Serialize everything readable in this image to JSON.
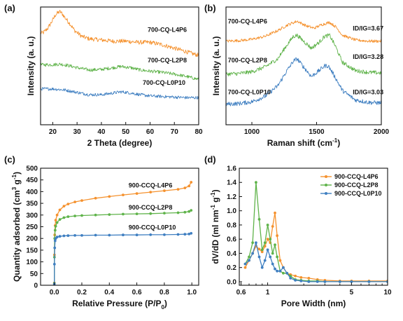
{
  "chart_data": [
    {
      "id": "a",
      "type": "line",
      "panel_label": "(a)",
      "xlabel": "2 Theta (degree)",
      "ylabel": "Intensity (a. u.)",
      "xlim": [
        15,
        80
      ],
      "ylim": [
        0,
        10
      ],
      "x_ticks": [
        20,
        30,
        40,
        50,
        60,
        70,
        80
      ],
      "y_ticks_shown": false,
      "grid": false,
      "legend": "none",
      "series": [
        {
          "name": "700-CQ-L4P6",
          "color": "#f5922f",
          "noise": 0.18,
          "x": [
            16,
            18,
            20,
            21,
            22,
            23,
            24,
            25,
            27,
            29,
            32,
            35,
            40,
            45,
            50,
            55,
            60,
            65,
            70,
            75,
            78,
            80
          ],
          "y": [
            7.8,
            8.2,
            8.9,
            9.3,
            9.5,
            9.6,
            9.4,
            9.1,
            8.6,
            8.0,
            7.5,
            7.3,
            7.2,
            7.1,
            7.1,
            7.0,
            7.0,
            6.8,
            6.5,
            6.2,
            6.0,
            5.9
          ]
        },
        {
          "name": "700-CQ-L2P8",
          "color": "#5fb34a",
          "noise": 0.14,
          "x": [
            16,
            20,
            23,
            26,
            30,
            35,
            40,
            45,
            48,
            52,
            56,
            60,
            65,
            70,
            75,
            78,
            80
          ],
          "y": [
            5.1,
            5.1,
            5.15,
            5.05,
            4.85,
            4.65,
            4.7,
            4.85,
            4.95,
            4.85,
            4.65,
            4.55,
            4.45,
            4.3,
            4.1,
            3.95,
            3.85
          ]
        },
        {
          "name": "700-CQ-L0P10",
          "color": "#3f7fc1",
          "noise": 0.13,
          "x": [
            16,
            20,
            25,
            30,
            35,
            40,
            45,
            48,
            52,
            56,
            60,
            65,
            70,
            75,
            80
          ],
          "y": [
            3.05,
            3.05,
            2.95,
            2.75,
            2.55,
            2.55,
            2.7,
            2.8,
            2.7,
            2.55,
            2.45,
            2.4,
            2.35,
            2.3,
            2.3
          ]
        }
      ],
      "annotations": [
        {
          "text": "700-CQ-L4P6",
          "x": 59,
          "y": 7.9
        },
        {
          "text": "700-CQ-L2P8",
          "x": 59,
          "y": 5.3
        },
        {
          "text": "700-CQ-L0P10",
          "x": 57,
          "y": 3.4
        }
      ]
    },
    {
      "id": "b",
      "type": "line",
      "panel_label": "(b)",
      "xlabel": "Raman shift (cm",
      "xlabel_superscript": "-1",
      "xlabel_suffix": ")",
      "ylabel": "Intensity (a. u.)",
      "xlim": [
        800,
        2000
      ],
      "ylim": [
        0,
        10
      ],
      "x_ticks": [
        1000,
        1500,
        2000
      ],
      "y_ticks_shown": false,
      "grid": false,
      "legend": "none",
      "series": [
        {
          "name": "700-CQ-L4P6",
          "color": "#f5922f",
          "noise": 0.12,
          "x": [
            800,
            900,
            1000,
            1100,
            1200,
            1280,
            1350,
            1420,
            1480,
            1540,
            1600,
            1650,
            1700,
            1800,
            1900,
            2000
          ],
          "y": [
            7.1,
            7.15,
            7.25,
            7.5,
            8.0,
            8.5,
            8.8,
            8.4,
            8.2,
            8.5,
            8.7,
            8.3,
            7.6,
            7.2,
            7.1,
            7.1
          ]
        },
        {
          "name": "700-CQ-L2P8",
          "color": "#5fb34a",
          "noise": 0.17,
          "x": [
            800,
            900,
            1000,
            1100,
            1200,
            1260,
            1320,
            1350,
            1400,
            1460,
            1520,
            1560,
            1600,
            1640,
            1700,
            1800,
            1900,
            2000
          ],
          "y": [
            4.3,
            4.35,
            4.5,
            4.9,
            5.6,
            6.6,
            7.5,
            7.6,
            7.1,
            6.5,
            7.0,
            7.5,
            7.6,
            6.8,
            5.3,
            4.6,
            4.45,
            4.4
          ]
        },
        {
          "name": "700-CQ-L0P10",
          "color": "#3f7fc1",
          "noise": 0.18,
          "x": [
            800,
            900,
            1000,
            1100,
            1200,
            1260,
            1320,
            1350,
            1400,
            1460,
            1520,
            1560,
            1590,
            1630,
            1700,
            1800,
            1900,
            2000
          ],
          "y": [
            1.75,
            1.8,
            1.95,
            2.4,
            3.3,
            4.4,
            5.4,
            5.6,
            4.9,
            4.1,
            4.6,
            5.0,
            5.0,
            4.3,
            2.9,
            2.1,
            1.9,
            1.85
          ]
        }
      ],
      "annotations": [
        {
          "text": "700-CQ-L4P6",
          "x": 815,
          "y": 8.6
        },
        {
          "text": "700-CQ-L2P8",
          "x": 815,
          "y": 5.3
        },
        {
          "text": "700-CQ-L0P10",
          "x": 815,
          "y": 2.6
        },
        {
          "text": "ID/IG=3.67",
          "x": 1780,
          "y": 8.0
        },
        {
          "text": "ID/IG=3.28",
          "x": 1780,
          "y": 5.6
        },
        {
          "text": "ID/IG=3.03",
          "x": 1780,
          "y": 2.6
        }
      ]
    },
    {
      "id": "c",
      "type": "line",
      "panel_label": "(c)",
      "xlabel": "Relative Pressure (P/P",
      "xlabel_subscript": "0",
      "xlabel_suffix": ")",
      "ylabel": "Quantity adsorbed (cm",
      "ylabel_superscript": "3",
      "ylabel_middle": " g",
      "ylabel_superscript2": "-1",
      "ylabel_suffix": ")",
      "xlim": [
        -0.1,
        1.05
      ],
      "ylim": [
        0,
        500
      ],
      "x_ticks": [
        0.0,
        0.2,
        0.4,
        0.6,
        0.8,
        1.0
      ],
      "x_tick_labels": [
        "0.0",
        "0.2",
        "0.4",
        "0.6",
        "0.8",
        "1.0"
      ],
      "y_ticks": [
        0,
        50,
        100,
        150,
        200,
        250,
        300,
        350,
        400,
        450,
        500
      ],
      "grid": false,
      "legend": "none",
      "markers": true,
      "series": [
        {
          "name": "900-CCQ-L4P6",
          "color": "#f5922f",
          "x": [
            0.0,
            0.001,
            0.003,
            0.006,
            0.01,
            0.02,
            0.04,
            0.07,
            0.1,
            0.15,
            0.2,
            0.3,
            0.4,
            0.5,
            0.6,
            0.7,
            0.8,
            0.9,
            0.95,
            0.98,
            0.995
          ],
          "y": [
            10,
            130,
            215,
            255,
            278,
            300,
            322,
            338,
            347,
            356,
            362,
            372,
            379,
            386,
            392,
            398,
            404,
            410,
            416,
            424,
            440
          ]
        },
        {
          "name": "900-CCQ-L2P8",
          "color": "#5fb34a",
          "x": [
            0.0,
            0.001,
            0.003,
            0.006,
            0.01,
            0.02,
            0.04,
            0.07,
            0.1,
            0.15,
            0.2,
            0.3,
            0.4,
            0.5,
            0.6,
            0.7,
            0.8,
            0.9,
            0.95,
            0.98,
            0.995
          ],
          "y": [
            8,
            120,
            200,
            235,
            252,
            268,
            281,
            289,
            293,
            296,
            298,
            300,
            302,
            304,
            305,
            306,
            308,
            310,
            312,
            315,
            320
          ]
        },
        {
          "name": "900-CCQ-L0P10",
          "color": "#3f7fc1",
          "x": [
            0.0,
            0.001,
            0.003,
            0.006,
            0.01,
            0.02,
            0.04,
            0.07,
            0.1,
            0.15,
            0.2,
            0.3,
            0.4,
            0.5,
            0.6,
            0.7,
            0.8,
            0.9,
            0.95,
            0.98,
            0.995
          ],
          "y": [
            5,
            90,
            160,
            190,
            200,
            206,
            209,
            211,
            212,
            213,
            213,
            214,
            214,
            215,
            215,
            216,
            216,
            217,
            218,
            219,
            222
          ]
        }
      ],
      "annotations": [
        {
          "text": "900-CCQ-L4P6",
          "x": 0.54,
          "y": 418
        },
        {
          "text": "900-CCQ-L2P8",
          "x": 0.54,
          "y": 323
        },
        {
          "text": "900-CCQ-L0P10",
          "x": 0.54,
          "y": 238
        }
      ]
    },
    {
      "id": "d",
      "type": "line",
      "panel_label": "(d)",
      "xlabel": "Pore Width (nm)",
      "ylabel": "dV/dD (ml nm",
      "ylabel_superscript": "-1",
      "ylabel_middle": " g",
      "ylabel_superscript2": "-1",
      "ylabel_suffix": ")",
      "x_scale": "log",
      "xlim": [
        0.58,
        10
      ],
      "ylim": [
        -0.05,
        1.6
      ],
      "x_ticks": [
        0.6,
        1,
        5,
        10
      ],
      "x_tick_labels": [
        "0.6",
        "1",
        "5",
        "10"
      ],
      "x_minor_ticks": [
        0.7,
        0.8,
        0.9,
        2,
        3,
        4,
        6,
        7,
        8,
        9
      ],
      "y_ticks": [
        0.0,
        0.2,
        0.4,
        0.6,
        0.8,
        1.0,
        1.2,
        1.4,
        1.6
      ],
      "y_tick_labels": [
        "0.0",
        "0.2",
        "0.4",
        "0.6",
        "0.8",
        "1.0",
        "1.2",
        "1.4",
        "1.6"
      ],
      "grid": false,
      "legend": "top-right",
      "markers": true,
      "series": [
        {
          "name": "900-CCQ-L4P6",
          "color": "#f5922f",
          "x": [
            0.65,
            0.7,
            0.75,
            0.8,
            0.85,
            0.9,
            0.95,
            1.0,
            1.05,
            1.1,
            1.15,
            1.2,
            1.27,
            1.35,
            1.45,
            1.55,
            1.7,
            1.9,
            2.2,
            2.6,
            3.0,
            4.0,
            5.0,
            7.0,
            10.0
          ],
          "y": [
            0.2,
            0.3,
            0.4,
            0.5,
            0.46,
            0.42,
            0.5,
            0.6,
            0.55,
            0.78,
            0.97,
            0.65,
            0.3,
            0.2,
            0.12,
            0.1,
            0.08,
            0.06,
            0.05,
            0.03,
            0.02,
            0.01,
            0.01,
            0.01,
            0.01
          ]
        },
        {
          "name": "900-CCQ-L2P8",
          "color": "#5fb34a",
          "x": [
            0.65,
            0.7,
            0.75,
            0.8,
            0.85,
            0.9,
            0.95,
            1.0,
            1.05,
            1.1,
            1.15,
            1.2,
            1.27,
            1.35,
            1.45,
            1.55,
            1.7,
            1.9,
            2.2,
            2.6,
            3.0,
            4.0,
            5.0,
            7.0,
            10.0
          ],
          "y": [
            0.25,
            0.35,
            0.55,
            1.4,
            0.88,
            0.45,
            0.55,
            0.8,
            0.6,
            0.4,
            0.52,
            0.35,
            0.15,
            0.12,
            0.12,
            0.08,
            0.03,
            0.02,
            0.01,
            0.01,
            0.0,
            0.0,
            0.0,
            0.0,
            0.0
          ]
        },
        {
          "name": "900-CCQ-L0P10",
          "color": "#3f7fc1",
          "x": [
            0.65,
            0.7,
            0.75,
            0.8,
            0.85,
            0.9,
            0.95,
            1.0,
            1.05,
            1.1,
            1.15,
            1.2,
            1.27,
            1.35,
            1.45,
            1.55,
            1.7,
            1.9,
            2.2,
            2.6,
            3.0,
            4.0,
            5.0,
            7.0,
            10.0
          ],
          "y": [
            0.25,
            0.3,
            0.4,
            0.55,
            0.35,
            0.2,
            0.3,
            0.45,
            0.35,
            0.25,
            0.18,
            0.15,
            0.15,
            0.2,
            0.12,
            0.05,
            0.02,
            0.01,
            0.0,
            0.0,
            0.0,
            0.0,
            0.0,
            0.0,
            0.0
          ]
        }
      ]
    }
  ]
}
